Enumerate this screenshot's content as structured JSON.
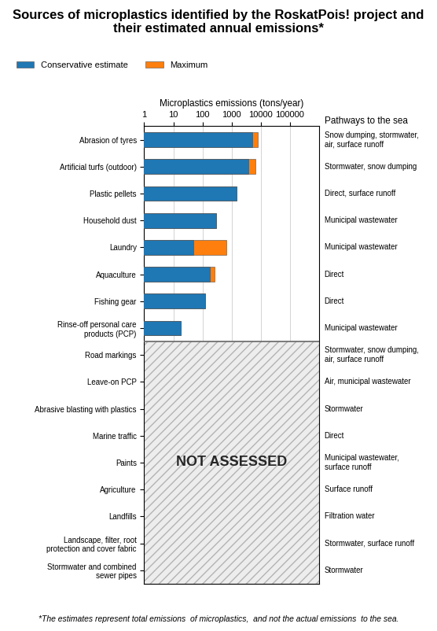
{
  "chart_data": {
    "type": "bar",
    "orientation": "horizontal",
    "log": "x",
    "grid": true,
    "legend": "upper left",
    "title": "Sources of microplastics identified by the RoskatPois! project and their estimated annual emissions*",
    "x_label": "Microplastics emissions (tons/year)",
    "pathways_title": "Pathways to the sea",
    "not_assessed_label": "NOT ASSESSED",
    "footnote": "*The estimates represent total emissions  of microplastics,  and not the actual emissions  to the sea.",
    "xlim": [
      1,
      1000000
    ],
    "xticks": [
      1,
      10,
      100,
      1000,
      10000,
      100000
    ],
    "categories": [
      "Abrasion of tyres",
      "Artificial turfs (outdoor)",
      "Plastic pellets",
      "Household dust",
      "Laundry",
      "Aquaculture",
      "Fishing gear",
      "Rinse-off personal care\nproducts (PCP)",
      "Road markings",
      "Leave-on PCP",
      "Abrasive blasting with plastics",
      "Marine traffic",
      "Paints",
      "Agriculture",
      "Landfills",
      "Landscape, filter, root\nprotection and cover fabric",
      "Stormwater and combined\nsewer pipes"
    ],
    "pathways": [
      "Snow dumping, stormwater,\nair, surface runoff",
      "Stormwater, snow dumping",
      "Direct, surface runoff",
      "Municipal wastewater",
      "Municipal wastewater",
      "Direct",
      "Direct",
      "Municipal wastewater",
      "Stormwater, snow dumping,\nair, surface runoff",
      "Air, municipal wastewater",
      "Stormwater",
      "Direct",
      "Municipal wastewater,\nsurface runoff",
      "Surface runoff",
      "Filtration water",
      "Stormwater, surface runoff",
      "Stormwater"
    ],
    "series": [
      {
        "name": "Conservative estimate",
        "values": [
          5000,
          3800,
          1500,
          300,
          50,
          180,
          120,
          18,
          null,
          null,
          null,
          null,
          null,
          null,
          null,
          null,
          null
        ]
      },
      {
        "name": "Maximum",
        "values": [
          8000,
          6500,
          1500,
          300,
          650,
          260,
          120,
          18,
          null,
          null,
          null,
          null,
          null,
          null,
          null,
          null,
          null
        ]
      }
    ]
  }
}
